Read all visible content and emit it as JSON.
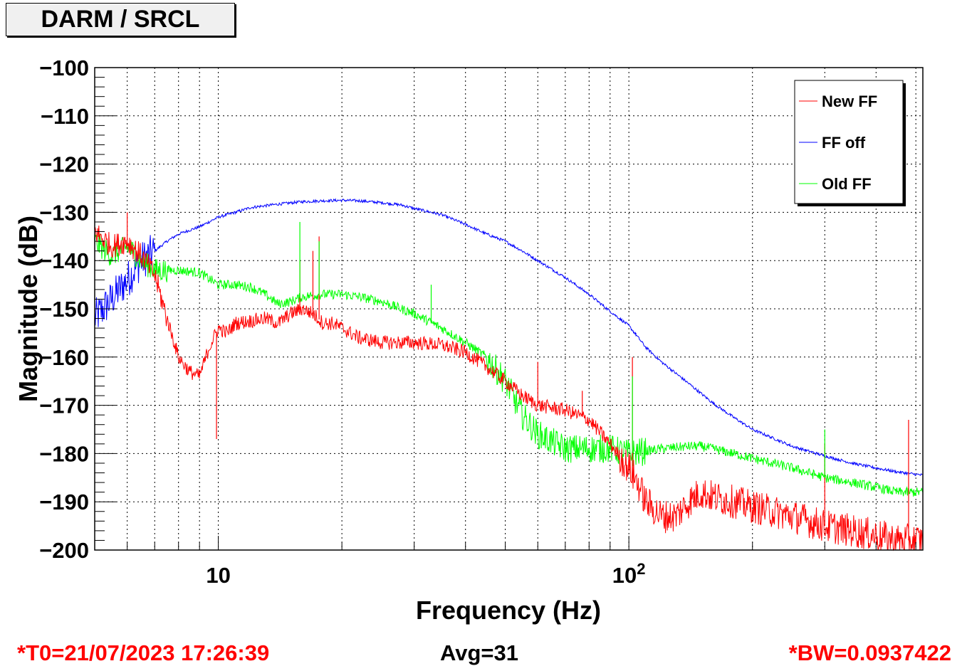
{
  "title": "DARM / SRCL",
  "footer": {
    "t0": "*T0=21/07/2023 17:26:39",
    "avg": "Avg=31",
    "bw": "*BW=0.0937422"
  },
  "colors": {
    "new_ff": "#ff0000",
    "ff_off": "#0000ff",
    "old_ff": "#00ff00"
  },
  "chart_data": {
    "type": "line",
    "title": "DARM / SRCL",
    "xlabel": "Frequency (Hz)",
    "ylabel": "Magnitude (dB)",
    "xscale": "log",
    "xlim": [
      5.0,
      520.0
    ],
    "ylim": [
      -200,
      -100
    ],
    "grid": true,
    "legend_position": "top-right",
    "x_tick_labels": [
      "10",
      "10²"
    ],
    "x_tick_values": [
      10,
      100
    ],
    "y_ticks": [
      -100,
      -110,
      -120,
      -130,
      -140,
      -150,
      -160,
      -170,
      -180,
      -190,
      -200
    ],
    "y_tick_labels": [
      "−100",
      "−110",
      "−120",
      "−130",
      "−140",
      "−150",
      "−160",
      "−170",
      "−180",
      "−190",
      "−200"
    ],
    "series": [
      {
        "name": "New FF",
        "color": "#ff0000",
        "noise": 1.5,
        "x": [
          5,
          5.5,
          6,
          6.5,
          7,
          7.5,
          8,
          8.5,
          9,
          9.5,
          10,
          10.5,
          11,
          12,
          13,
          14,
          15,
          16,
          17,
          18,
          19,
          20,
          22,
          25,
          30,
          35,
          40,
          45,
          50,
          55,
          60,
          70,
          80,
          90,
          100,
          105,
          110,
          120,
          130,
          140,
          150,
          160,
          180,
          200,
          250,
          300,
          350,
          400,
          450,
          520
        ],
        "y": [
          -134,
          -137,
          -136,
          -139,
          -143,
          -152,
          -160,
          -163,
          -164,
          -158,
          -154,
          -155,
          -153,
          -152.5,
          -152,
          -153,
          -151,
          -150,
          -151,
          -153,
          -153,
          -154,
          -156,
          -157,
          -157,
          -157.5,
          -159,
          -162,
          -165,
          -168,
          -170,
          -171,
          -173,
          -178,
          -183,
          -186,
          -190,
          -193,
          -193,
          -190,
          -188,
          -189,
          -190,
          -191,
          -193,
          -195,
          -196,
          -197,
          -198,
          -198
        ]
      },
      {
        "name": "FF off",
        "color": "#0000ff",
        "noise": 0.3,
        "x": [
          5,
          5.5,
          6,
          6.5,
          7,
          7.5,
          8,
          9,
          10,
          11,
          12,
          14,
          16,
          18,
          20,
          22,
          25,
          28,
          30,
          35,
          40,
          45,
          50,
          55,
          60,
          70,
          80,
          90,
          100,
          110,
          120,
          140,
          160,
          180,
          200,
          250,
          300,
          350,
          400,
          450,
          520
        ],
        "y": [
          -152,
          -148,
          -144,
          -140,
          -138,
          -136,
          -134.5,
          -133,
          -131,
          -130,
          -129,
          -128.3,
          -127.8,
          -127.6,
          -127.5,
          -127.6,
          -128,
          -128.5,
          -129.2,
          -130.5,
          -132.5,
          -134.5,
          -136,
          -138,
          -140,
          -143.5,
          -147,
          -150.5,
          -153.5,
          -158,
          -161,
          -165.5,
          -169.5,
          -172.5,
          -175,
          -178.5,
          -180.5,
          -182,
          -183,
          -183.8,
          -184.5
        ]
      },
      {
        "name": "Old FF",
        "color": "#00ff00",
        "noise": 1.0,
        "x": [
          5,
          5.5,
          6,
          6.5,
          7,
          7.5,
          8,
          9,
          10,
          11,
          12,
          13,
          14,
          15,
          16,
          18,
          20,
          22,
          25,
          30,
          35,
          40,
          45,
          50,
          55,
          60,
          70,
          80,
          90,
          100,
          110,
          120,
          140,
          150,
          160,
          180,
          200,
          250,
          300,
          350,
          400,
          450,
          520
        ],
        "y": [
          -136,
          -139,
          -137,
          -140,
          -142,
          -142,
          -142,
          -142.5,
          -145,
          -145,
          -145.5,
          -147,
          -149,
          -148.5,
          -147.5,
          -147,
          -147,
          -147.5,
          -148.5,
          -151,
          -154,
          -157,
          -160,
          -165,
          -172,
          -176,
          -179,
          -179,
          -179,
          -180,
          -179.5,
          -179,
          -178.5,
          -178.5,
          -179,
          -180,
          -181,
          -183,
          -185,
          -186,
          -187,
          -188,
          -188
        ]
      }
    ],
    "peaks": [
      {
        "series": "New FF",
        "x": 9.9,
        "y": -177
      },
      {
        "series": "New FF",
        "x": 15.8,
        "y": -140
      },
      {
        "series": "New FF",
        "x": 17.0,
        "y": -138
      },
      {
        "series": "New FF",
        "x": 17.6,
        "y": -135
      },
      {
        "series": "New FF",
        "x": 60,
        "y": -161
      },
      {
        "series": "New FF",
        "x": 77,
        "y": -167
      },
      {
        "series": "New FF",
        "x": 102,
        "y": -160
      },
      {
        "series": "New FF",
        "x": 300,
        "y": -178
      },
      {
        "series": "New FF",
        "x": 480,
        "y": -173
      },
      {
        "series": "New FF",
        "x": 6.0,
        "y": -130
      },
      {
        "series": "Old FF",
        "x": 15.8,
        "y": -132
      },
      {
        "series": "Old FF",
        "x": 17.6,
        "y": -136
      },
      {
        "series": "Old FF",
        "x": 33,
        "y": -145
      },
      {
        "series": "Old FF",
        "x": 102,
        "y": -164
      },
      {
        "series": "Old FF",
        "x": 300,
        "y": -175
      },
      {
        "series": "FF off",
        "x": 104,
        "y": -155
      }
    ],
    "legend": [
      "New FF",
      "FF off",
      "Old FF"
    ]
  }
}
